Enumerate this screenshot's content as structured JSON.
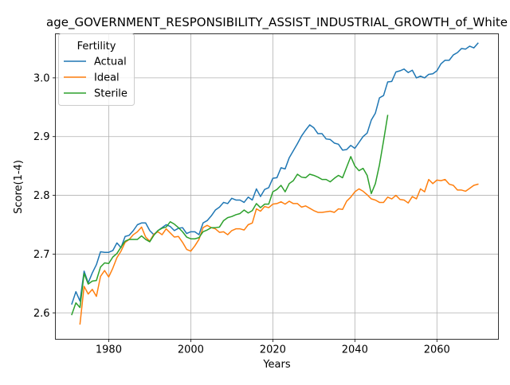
{
  "chart_data": {
    "type": "line",
    "title": "age_GOVERNMENT_RESPONSIBILITY_ASSIST_INDUSTRIAL_GROWTH_of_White",
    "xlabel": "Years",
    "ylabel": "Score(1-4)",
    "xlim": [
      1967,
      2075
    ],
    "ylim": [
      2.555,
      3.075
    ],
    "xticks": [
      1980,
      2000,
      2020,
      2040,
      2060
    ],
    "yticks": [
      2.6,
      2.7,
      2.8,
      2.9,
      3.0
    ],
    "xtick_labels": [
      "1980",
      "2000",
      "2020",
      "2040",
      "2060"
    ],
    "ytick_labels": [
      "2.6",
      "2.7",
      "2.8",
      "2.9",
      "3.0"
    ],
    "grid": true,
    "legend": {
      "title": "Fertility",
      "placement": "top-left"
    },
    "series": [
      {
        "name": "Actual",
        "color": "#1f77b4",
        "points": [
          [
            1971,
            2.615
          ],
          [
            1972,
            2.636
          ],
          [
            1973,
            2.62
          ],
          [
            1974,
            2.671
          ],
          [
            1975,
            2.651
          ],
          [
            1976,
            2.668
          ],
          [
            1977,
            2.682
          ],
          [
            1978,
            2.704
          ],
          [
            1979,
            2.703
          ],
          [
            1980,
            2.703
          ],
          [
            1981,
            2.706
          ],
          [
            1982,
            2.719
          ],
          [
            1983,
            2.711
          ],
          [
            1984,
            2.73
          ],
          [
            1985,
            2.732
          ],
          [
            1986,
            2.74
          ],
          [
            1987,
            2.75
          ],
          [
            1988,
            2.753
          ],
          [
            1989,
            2.753
          ],
          [
            1990,
            2.74
          ],
          [
            1991,
            2.733
          ],
          [
            1992,
            2.74
          ],
          [
            1993,
            2.745
          ],
          [
            1994,
            2.75
          ],
          [
            1995,
            2.747
          ],
          [
            1996,
            2.74
          ],
          [
            1997,
            2.744
          ],
          [
            1998,
            2.745
          ],
          [
            1999,
            2.735
          ],
          [
            2000,
            2.738
          ],
          [
            2001,
            2.738
          ],
          [
            2002,
            2.733
          ],
          [
            2003,
            2.753
          ],
          [
            2004,
            2.757
          ],
          [
            2005,
            2.765
          ],
          [
            2006,
            2.775
          ],
          [
            2007,
            2.78
          ],
          [
            2008,
            2.788
          ],
          [
            2009,
            2.786
          ],
          [
            2010,
            2.795
          ],
          [
            2011,
            2.792
          ],
          [
            2012,
            2.792
          ],
          [
            2013,
            2.788
          ],
          [
            2014,
            2.797
          ],
          [
            2015,
            2.792
          ],
          [
            2016,
            2.811
          ],
          [
            2017,
            2.798
          ],
          [
            2018,
            2.81
          ],
          [
            2019,
            2.813
          ],
          [
            2020,
            2.829
          ],
          [
            2021,
            2.83
          ],
          [
            2022,
            2.847
          ],
          [
            2023,
            2.845
          ],
          [
            2024,
            2.864
          ],
          [
            2025,
            2.876
          ],
          [
            2026,
            2.888
          ],
          [
            2027,
            2.901
          ],
          [
            2028,
            2.911
          ],
          [
            2029,
            2.92
          ],
          [
            2030,
            2.915
          ],
          [
            2031,
            2.905
          ],
          [
            2032,
            2.905
          ],
          [
            2033,
            2.896
          ],
          [
            2034,
            2.895
          ],
          [
            2035,
            2.889
          ],
          [
            2036,
            2.887
          ],
          [
            2037,
            2.877
          ],
          [
            2038,
            2.878
          ],
          [
            2039,
            2.885
          ],
          [
            2040,
            2.88
          ],
          [
            2041,
            2.89
          ],
          [
            2042,
            2.9
          ],
          [
            2043,
            2.906
          ],
          [
            2044,
            2.928
          ],
          [
            2045,
            2.94
          ],
          [
            2046,
            2.966
          ],
          [
            2047,
            2.97
          ],
          [
            2048,
            2.993
          ],
          [
            2049,
            2.994
          ],
          [
            2050,
            3.01
          ],
          [
            2051,
            3.012
          ],
          [
            2052,
            3.015
          ],
          [
            2053,
            3.009
          ],
          [
            2054,
            3.013
          ],
          [
            2055,
            3.0
          ],
          [
            2056,
            3.003
          ],
          [
            2057,
            3.0
          ],
          [
            2058,
            3.006
          ],
          [
            2059,
            3.007
          ],
          [
            2060,
            3.012
          ],
          [
            2061,
            3.024
          ],
          [
            2062,
            3.03
          ],
          [
            2063,
            3.03
          ],
          [
            2064,
            3.039
          ],
          [
            2065,
            3.043
          ],
          [
            2066,
            3.05
          ],
          [
            2067,
            3.049
          ],
          [
            2068,
            3.054
          ],
          [
            2069,
            3.051
          ],
          [
            2070,
            3.059
          ]
        ]
      },
      {
        "name": "Ideal",
        "color": "#ff7f0e",
        "points": [
          [
            1973,
            2.581
          ],
          [
            1974,
            2.645
          ],
          [
            1975,
            2.632
          ],
          [
            1976,
            2.64
          ],
          [
            1977,
            2.628
          ],
          [
            1978,
            2.662
          ],
          [
            1979,
            2.672
          ],
          [
            1980,
            2.661
          ],
          [
            1981,
            2.676
          ],
          [
            1982,
            2.694
          ],
          [
            1983,
            2.705
          ],
          [
            1984,
            2.72
          ],
          [
            1985,
            2.725
          ],
          [
            1986,
            2.733
          ],
          [
            1987,
            2.738
          ],
          [
            1988,
            2.746
          ],
          [
            1989,
            2.729
          ],
          [
            1990,
            2.722
          ],
          [
            1991,
            2.734
          ],
          [
            1992,
            2.738
          ],
          [
            1993,
            2.733
          ],
          [
            1994,
            2.743
          ],
          [
            1995,
            2.736
          ],
          [
            1996,
            2.729
          ],
          [
            1997,
            2.73
          ],
          [
            1998,
            2.72
          ],
          [
            1999,
            2.708
          ],
          [
            2000,
            2.705
          ],
          [
            2001,
            2.714
          ],
          [
            2002,
            2.725
          ],
          [
            2003,
            2.745
          ],
          [
            2004,
            2.749
          ],
          [
            2005,
            2.745
          ],
          [
            2006,
            2.743
          ],
          [
            2007,
            2.737
          ],
          [
            2008,
            2.738
          ],
          [
            2009,
            2.733
          ],
          [
            2010,
            2.74
          ],
          [
            2011,
            2.743
          ],
          [
            2012,
            2.743
          ],
          [
            2013,
            2.741
          ],
          [
            2014,
            2.75
          ],
          [
            2015,
            2.753
          ],
          [
            2016,
            2.777
          ],
          [
            2017,
            2.773
          ],
          [
            2018,
            2.781
          ],
          [
            2019,
            2.779
          ],
          [
            2020,
            2.785
          ],
          [
            2021,
            2.786
          ],
          [
            2022,
            2.789
          ],
          [
            2023,
            2.785
          ],
          [
            2024,
            2.79
          ],
          [
            2025,
            2.786
          ],
          [
            2026,
            2.786
          ],
          [
            2027,
            2.78
          ],
          [
            2028,
            2.782
          ],
          [
            2029,
            2.778
          ],
          [
            2030,
            2.774
          ],
          [
            2031,
            2.771
          ],
          [
            2032,
            2.771
          ],
          [
            2033,
            2.772
          ],
          [
            2034,
            2.773
          ],
          [
            2035,
            2.771
          ],
          [
            2036,
            2.777
          ],
          [
            2037,
            2.776
          ],
          [
            2038,
            2.79
          ],
          [
            2039,
            2.797
          ],
          [
            2040,
            2.806
          ],
          [
            2041,
            2.811
          ],
          [
            2042,
            2.807
          ],
          [
            2043,
            2.801
          ],
          [
            2044,
            2.794
          ],
          [
            2045,
            2.792
          ],
          [
            2046,
            2.788
          ],
          [
            2047,
            2.788
          ],
          [
            2048,
            2.797
          ],
          [
            2049,
            2.794
          ],
          [
            2050,
            2.8
          ],
          [
            2051,
            2.793
          ],
          [
            2052,
            2.792
          ],
          [
            2053,
            2.787
          ],
          [
            2054,
            2.798
          ],
          [
            2055,
            2.794
          ],
          [
            2056,
            2.811
          ],
          [
            2057,
            2.806
          ],
          [
            2058,
            2.827
          ],
          [
            2059,
            2.82
          ],
          [
            2060,
            2.826
          ],
          [
            2061,
            2.825
          ],
          [
            2062,
            2.827
          ],
          [
            2063,
            2.819
          ],
          [
            2064,
            2.817
          ],
          [
            2065,
            2.809
          ],
          [
            2066,
            2.809
          ],
          [
            2067,
            2.807
          ],
          [
            2068,
            2.812
          ],
          [
            2069,
            2.817
          ],
          [
            2070,
            2.819
          ]
        ]
      },
      {
        "name": "Sterile",
        "color": "#2ca02c",
        "points": [
          [
            1971,
            2.597
          ],
          [
            1972,
            2.617
          ],
          [
            1973,
            2.609
          ],
          [
            1974,
            2.667
          ],
          [
            1975,
            2.649
          ],
          [
            1976,
            2.654
          ],
          [
            1977,
            2.655
          ],
          [
            1978,
            2.678
          ],
          [
            1979,
            2.685
          ],
          [
            1980,
            2.684
          ],
          [
            1981,
            2.695
          ],
          [
            1982,
            2.701
          ],
          [
            1983,
            2.712
          ],
          [
            1984,
            2.722
          ],
          [
            1985,
            2.725
          ],
          [
            1986,
            2.725
          ],
          [
            1987,
            2.725
          ],
          [
            1988,
            2.731
          ],
          [
            1989,
            2.725
          ],
          [
            1990,
            2.721
          ],
          [
            1991,
            2.732
          ],
          [
            1992,
            2.74
          ],
          [
            1993,
            2.744
          ],
          [
            1994,
            2.746
          ],
          [
            1995,
            2.755
          ],
          [
            1996,
            2.751
          ],
          [
            1997,
            2.745
          ],
          [
            1998,
            2.738
          ],
          [
            1999,
            2.729
          ],
          [
            2000,
            2.726
          ],
          [
            2001,
            2.726
          ],
          [
            2002,
            2.728
          ],
          [
            2003,
            2.738
          ],
          [
            2004,
            2.741
          ],
          [
            2005,
            2.745
          ],
          [
            2006,
            2.745
          ],
          [
            2007,
            2.746
          ],
          [
            2008,
            2.757
          ],
          [
            2009,
            2.762
          ],
          [
            2010,
            2.764
          ],
          [
            2011,
            2.767
          ],
          [
            2012,
            2.769
          ],
          [
            2013,
            2.775
          ],
          [
            2014,
            2.77
          ],
          [
            2015,
            2.774
          ],
          [
            2016,
            2.786
          ],
          [
            2017,
            2.779
          ],
          [
            2018,
            2.785
          ],
          [
            2019,
            2.785
          ],
          [
            2020,
            2.806
          ],
          [
            2021,
            2.81
          ],
          [
            2022,
            2.817
          ],
          [
            2023,
            2.806
          ],
          [
            2024,
            2.82
          ],
          [
            2025,
            2.825
          ],
          [
            2026,
            2.836
          ],
          [
            2027,
            2.831
          ],
          [
            2028,
            2.83
          ],
          [
            2029,
            2.836
          ],
          [
            2030,
            2.834
          ],
          [
            2031,
            2.831
          ],
          [
            2032,
            2.827
          ],
          [
            2033,
            2.827
          ],
          [
            2034,
            2.823
          ],
          [
            2035,
            2.829
          ],
          [
            2036,
            2.834
          ],
          [
            2037,
            2.83
          ],
          [
            2038,
            2.848
          ],
          [
            2039,
            2.866
          ],
          [
            2040,
            2.85
          ],
          [
            2041,
            2.842
          ],
          [
            2042,
            2.846
          ],
          [
            2043,
            2.834
          ],
          [
            2044,
            2.803
          ],
          [
            2045,
            2.82
          ],
          [
            2046,
            2.852
          ],
          [
            2047,
            2.893
          ],
          [
            2048,
            2.936
          ]
        ]
      }
    ]
  }
}
